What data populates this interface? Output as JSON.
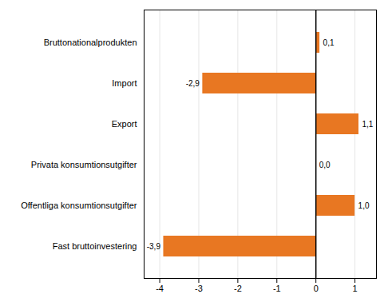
{
  "chart_data": {
    "type": "bar",
    "orientation": "horizontal",
    "categories": [
      "Fast bruttoinvestering",
      "Offentliga konsumtionsutgifter",
      "Privata konsumtionsutgifter",
      "Export",
      "Import",
      "Bruttonationalprodukten"
    ],
    "values": [
      -3.9,
      1.0,
      0.0,
      1.1,
      -2.9,
      0.1
    ],
    "value_labels": [
      "-3,9",
      "1,0",
      "0,0",
      "1,1",
      "-2,9",
      "0,1"
    ],
    "color": "#E87722",
    "xlim": [
      -4.4,
      1.55
    ],
    "xticks": [
      -4,
      -3,
      -2,
      -1,
      0,
      1
    ],
    "grid": true,
    "data_labels": true
  }
}
